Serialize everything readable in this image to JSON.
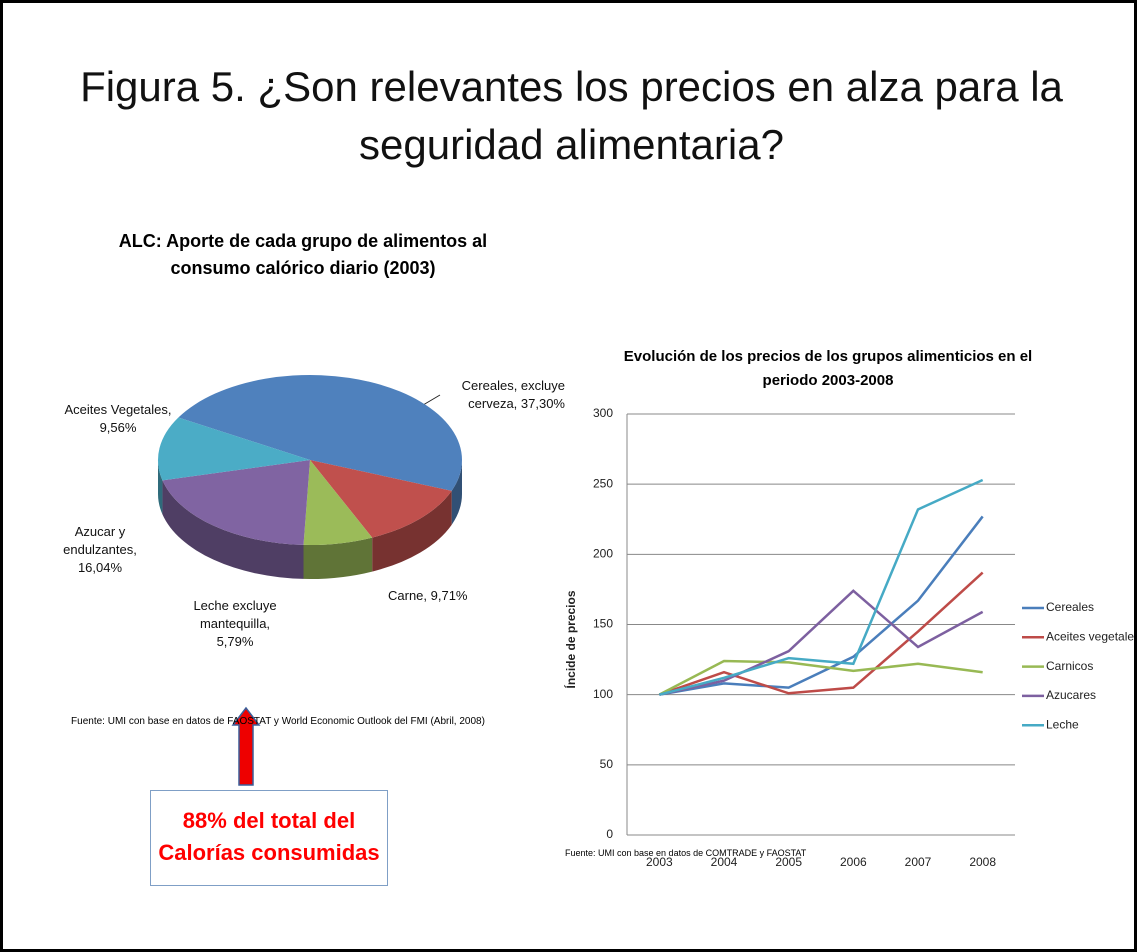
{
  "title": "Figura 5. ¿Son relevantes los precios en alza para la seguridad alimentaria?",
  "callout": "88% del total del Calorías consumidas",
  "chart_data": [
    {
      "type": "pie",
      "title": "ALC: Aporte de cada grupo de alimentos al consumo calórico diario  (2003)",
      "values": [
        37.3,
        9.71,
        5.79,
        16.04,
        9.56
      ],
      "value_labels": [
        "Cereales, excluye cerveza, 37,30%",
        "Carne, 9,71%",
        "Leche excluye mantequilla, 5,79%",
        "Azucar y endulzantes, 16,04%",
        "Aceites Vegetales, 9,56%"
      ],
      "colors": [
        "#4f81bd",
        "#c0504d",
        "#9bbb59",
        "#8064a2",
        "#4bacc6"
      ],
      "source": "Fuente: UMI con base en datos de FAOSTAT y World Economic Outlook del FMI (Abril, 2008)"
    },
    {
      "type": "line",
      "title": "Evolución de los precios de los grupos alimenticios en el periodo 2003-2008",
      "y_label": "Íncide de precios",
      "categories": [
        "2003",
        "2004",
        "2005",
        "2006",
        "2007",
        "2008"
      ],
      "series": [
        {
          "name": "Cereales",
          "color": "#4a7ebb",
          "values": [
            100,
            108,
            105,
            127,
            167,
            227
          ]
        },
        {
          "name": "Aceites vegetales",
          "color": "#be4b48",
          "values": [
            100,
            116,
            101,
            105,
            145,
            187
          ]
        },
        {
          "name": "Carnicos",
          "color": "#98b954",
          "values": [
            100,
            124,
            123,
            117,
            122,
            116
          ]
        },
        {
          "name": "Azucares",
          "color": "#7d60a0",
          "values": [
            100,
            110,
            131,
            174,
            134,
            159
          ]
        },
        {
          "name": "Leche",
          "color": "#46aac5",
          "values": [
            100,
            112,
            126,
            122,
            232,
            253
          ]
        }
      ],
      "ylim": [
        0,
        300
      ],
      "yticks": [
        0,
        50,
        100,
        150,
        200,
        250,
        300
      ],
      "grid": true,
      "legend": "right",
      "source": "Fuente: UMI con base en datos de COMTRADE y FAOSTAT"
    }
  ]
}
